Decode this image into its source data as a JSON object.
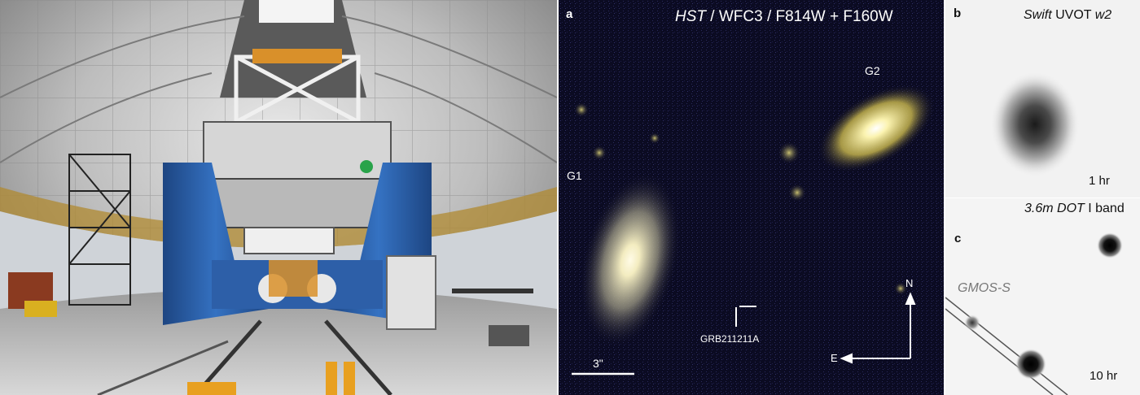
{
  "figure": {
    "panel_a": {
      "letter": "a",
      "title_italic": "HST",
      "title_rest": " / WFC3 / F814W + F160W",
      "galaxy_1": "G1",
      "galaxy_2": "G2",
      "grb_label": "GRB211211A",
      "scale_label": "3\"",
      "compass_north": "N",
      "compass_east": "E"
    },
    "panel_b": {
      "letter": "b",
      "title_italic_1": "Swift",
      "title_rest": " UVOT ",
      "title_italic_2": "w2",
      "exposure": "1 hr"
    },
    "panel_c": {
      "letter": "c",
      "title_italic": "3.6m DOT",
      "title_rest": " I band",
      "slit_label": "GMOS-S",
      "exposure": "10 hr"
    }
  },
  "colors": {
    "dome_panel": "#c9c9c9",
    "telescope_blue": "#2a5a9e",
    "hst_background": "#0b0b22",
    "galaxy_core": "#fff8d8",
    "galaxy_halo": "#c8b870"
  }
}
